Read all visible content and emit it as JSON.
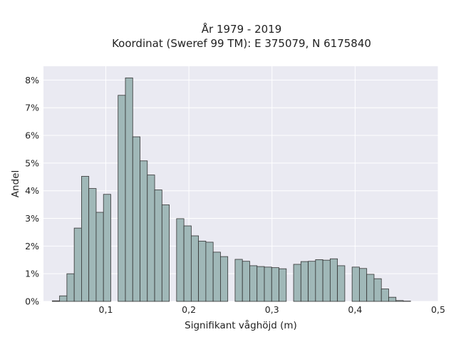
{
  "chart_data": {
    "type": "bar",
    "title_line1": "År 1979 - 2019",
    "title_line2": "Koordinat (Sweref 99 TM): E 375079, N 6175840",
    "xlabel": "Signifikant våghöjd (m)",
    "ylabel": "Andel",
    "xlim": [
      0.025,
      0.5
    ],
    "ylim": [
      0,
      8.5
    ],
    "xticks": [
      0.1,
      0.2,
      0.3,
      0.4,
      0.5
    ],
    "xtick_labels": [
      "0,1",
      "0,2",
      "0,3",
      "0,4",
      "0,5"
    ],
    "yticks": [
      0,
      1,
      2,
      3,
      4,
      5,
      6,
      7,
      8
    ],
    "ytick_labels": [
      "0%",
      "1%",
      "2%",
      "3%",
      "4%",
      "5%",
      "6%",
      "7%",
      "8%"
    ],
    "grid": true,
    "bin_width": 0.0088,
    "bin_start": 0.0356,
    "values": [
      0.02,
      0.2,
      1.0,
      2.65,
      4.52,
      4.08,
      3.22,
      3.87,
      0,
      7.45,
      8.08,
      5.95,
      5.08,
      4.57,
      4.03,
      3.49,
      0,
      2.99,
      2.73,
      2.37,
      2.18,
      2.14,
      1.78,
      1.62,
      0,
      1.52,
      1.45,
      1.29,
      1.26,
      1.24,
      1.22,
      1.18,
      0,
      1.34,
      1.44,
      1.45,
      1.51,
      1.49,
      1.54,
      1.29,
      0,
      1.24,
      1.19,
      0.98,
      0.82,
      0.45,
      0.15,
      0.03,
      0.01
    ],
    "colors": {
      "background": "#eaeaf2",
      "bar_fill": "#a0b8b8",
      "bar_edge": "#333333",
      "grid": "#ffffff"
    }
  }
}
